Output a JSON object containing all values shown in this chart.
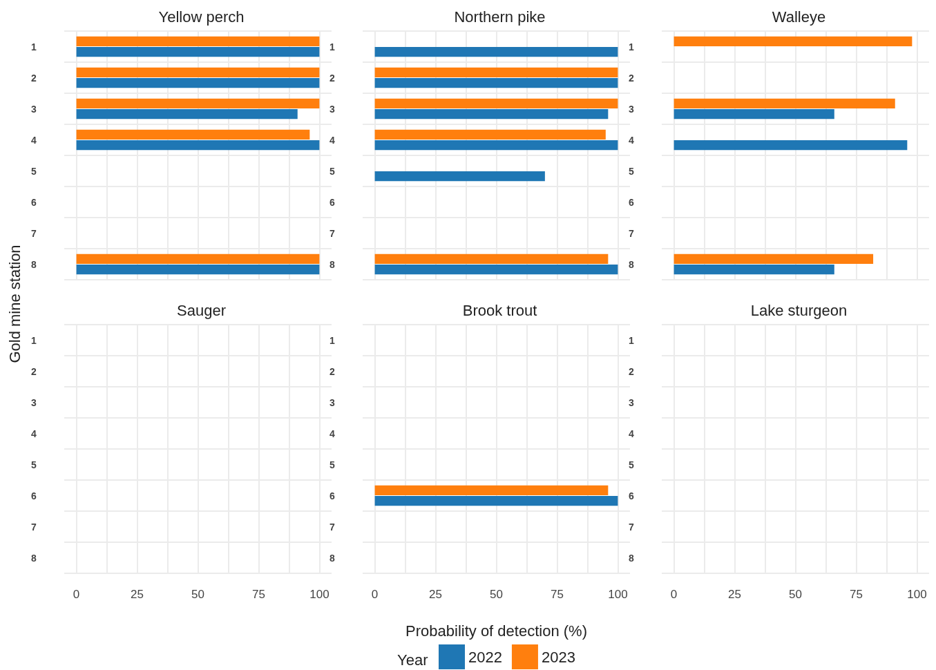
{
  "chart_data": [
    {
      "type": "bar",
      "orientation": "horizontal",
      "title": "Yellow perch",
      "ylabel": "Gold mine station",
      "categories": [
        "1",
        "2",
        "3",
        "4",
        "5",
        "6",
        "7",
        "8"
      ],
      "xlim": [
        -5,
        105
      ],
      "xticks": [
        0,
        25,
        50,
        75,
        100
      ],
      "grid": true,
      "tick_labels": "y",
      "series": [
        {
          "color": "#1f77b4",
          "values": [
            100,
            100,
            91,
            100,
            null,
            null,
            null,
            100
          ]
        },
        {
          "color": "#ff7f0e",
          "values": [
            100,
            100,
            100,
            96,
            null,
            null,
            null,
            100
          ]
        }
      ]
    },
    {
      "type": "bar",
      "orientation": "horizontal",
      "title": "Northern pike",
      "categories": [
        "1",
        "2",
        "3",
        "4",
        "5",
        "6",
        "7",
        "8"
      ],
      "xlim": [
        -5,
        105
      ],
      "xticks": [
        0,
        25,
        50,
        75,
        100
      ],
      "grid": true,
      "tick_labels": "y",
      "series": [
        {
          "color": "#1f77b4",
          "values": [
            100,
            100,
            96,
            100,
            70,
            null,
            null,
            100
          ]
        },
        {
          "color": "#ff7f0e",
          "values": [
            null,
            100,
            100,
            95,
            null,
            null,
            null,
            96
          ]
        }
      ]
    },
    {
      "type": "bar",
      "orientation": "horizontal",
      "title": "Walleye",
      "categories": [
        "1",
        "2",
        "3",
        "4",
        "5",
        "6",
        "7",
        "8"
      ],
      "xlim": [
        -5,
        105
      ],
      "xticks": [
        0,
        25,
        50,
        75,
        100
      ],
      "grid": true,
      "tick_labels": "y",
      "series": [
        {
          "color": "#1f77b4",
          "values": [
            null,
            null,
            66,
            96,
            null,
            null,
            null,
            66
          ]
        },
        {
          "color": "#ff7f0e",
          "values": [
            98,
            null,
            91,
            null,
            null,
            null,
            null,
            82
          ]
        }
      ]
    },
    {
      "type": "bar",
      "orientation": "horizontal",
      "title": "Sauger",
      "categories": [
        "1",
        "2",
        "3",
        "4",
        "5",
        "6",
        "7",
        "8"
      ],
      "xlim": [
        -5,
        105
      ],
      "xticks": [
        0,
        25,
        50,
        75,
        100
      ],
      "grid": true,
      "series": [
        {
          "color": "#1f77b4",
          "values": [
            null,
            null,
            null,
            null,
            null,
            null,
            null,
            null
          ]
        },
        {
          "color": "#ff7f0e",
          "values": [
            null,
            null,
            null,
            null,
            null,
            null,
            null,
            null
          ]
        }
      ]
    },
    {
      "type": "bar",
      "orientation": "horizontal",
      "title": "Brook trout",
      "xlabel": "Probability of detection (%)",
      "legend": "bottom",
      "legend_title": "Year",
      "categories": [
        "1",
        "2",
        "3",
        "4",
        "5",
        "6",
        "7",
        "8"
      ],
      "xlim": [
        -5,
        105
      ],
      "xticks": [
        0,
        25,
        50,
        75,
        100
      ],
      "grid": true,
      "series": [
        {
          "name": "2022",
          "color": "#1f77b4",
          "values": [
            null,
            null,
            null,
            null,
            null,
            100,
            null,
            null
          ]
        },
        {
          "name": "2023",
          "color": "#ff7f0e",
          "values": [
            null,
            null,
            null,
            null,
            null,
            96,
            null,
            null
          ]
        }
      ]
    },
    {
      "type": "bar",
      "orientation": "horizontal",
      "title": "Lake sturgeon",
      "categories": [
        "1",
        "2",
        "3",
        "4",
        "5",
        "6",
        "7",
        "8"
      ],
      "xlim": [
        -5,
        105
      ],
      "xticks": [
        0,
        25,
        50,
        75,
        100
      ],
      "grid": true,
      "series": [
        {
          "color": "#1f77b4",
          "values": [
            null,
            null,
            null,
            null,
            null,
            null,
            null,
            null
          ]
        },
        {
          "color": "#ff7f0e",
          "values": [
            null,
            null,
            null,
            null,
            null,
            null,
            null,
            null
          ]
        }
      ]
    }
  ]
}
